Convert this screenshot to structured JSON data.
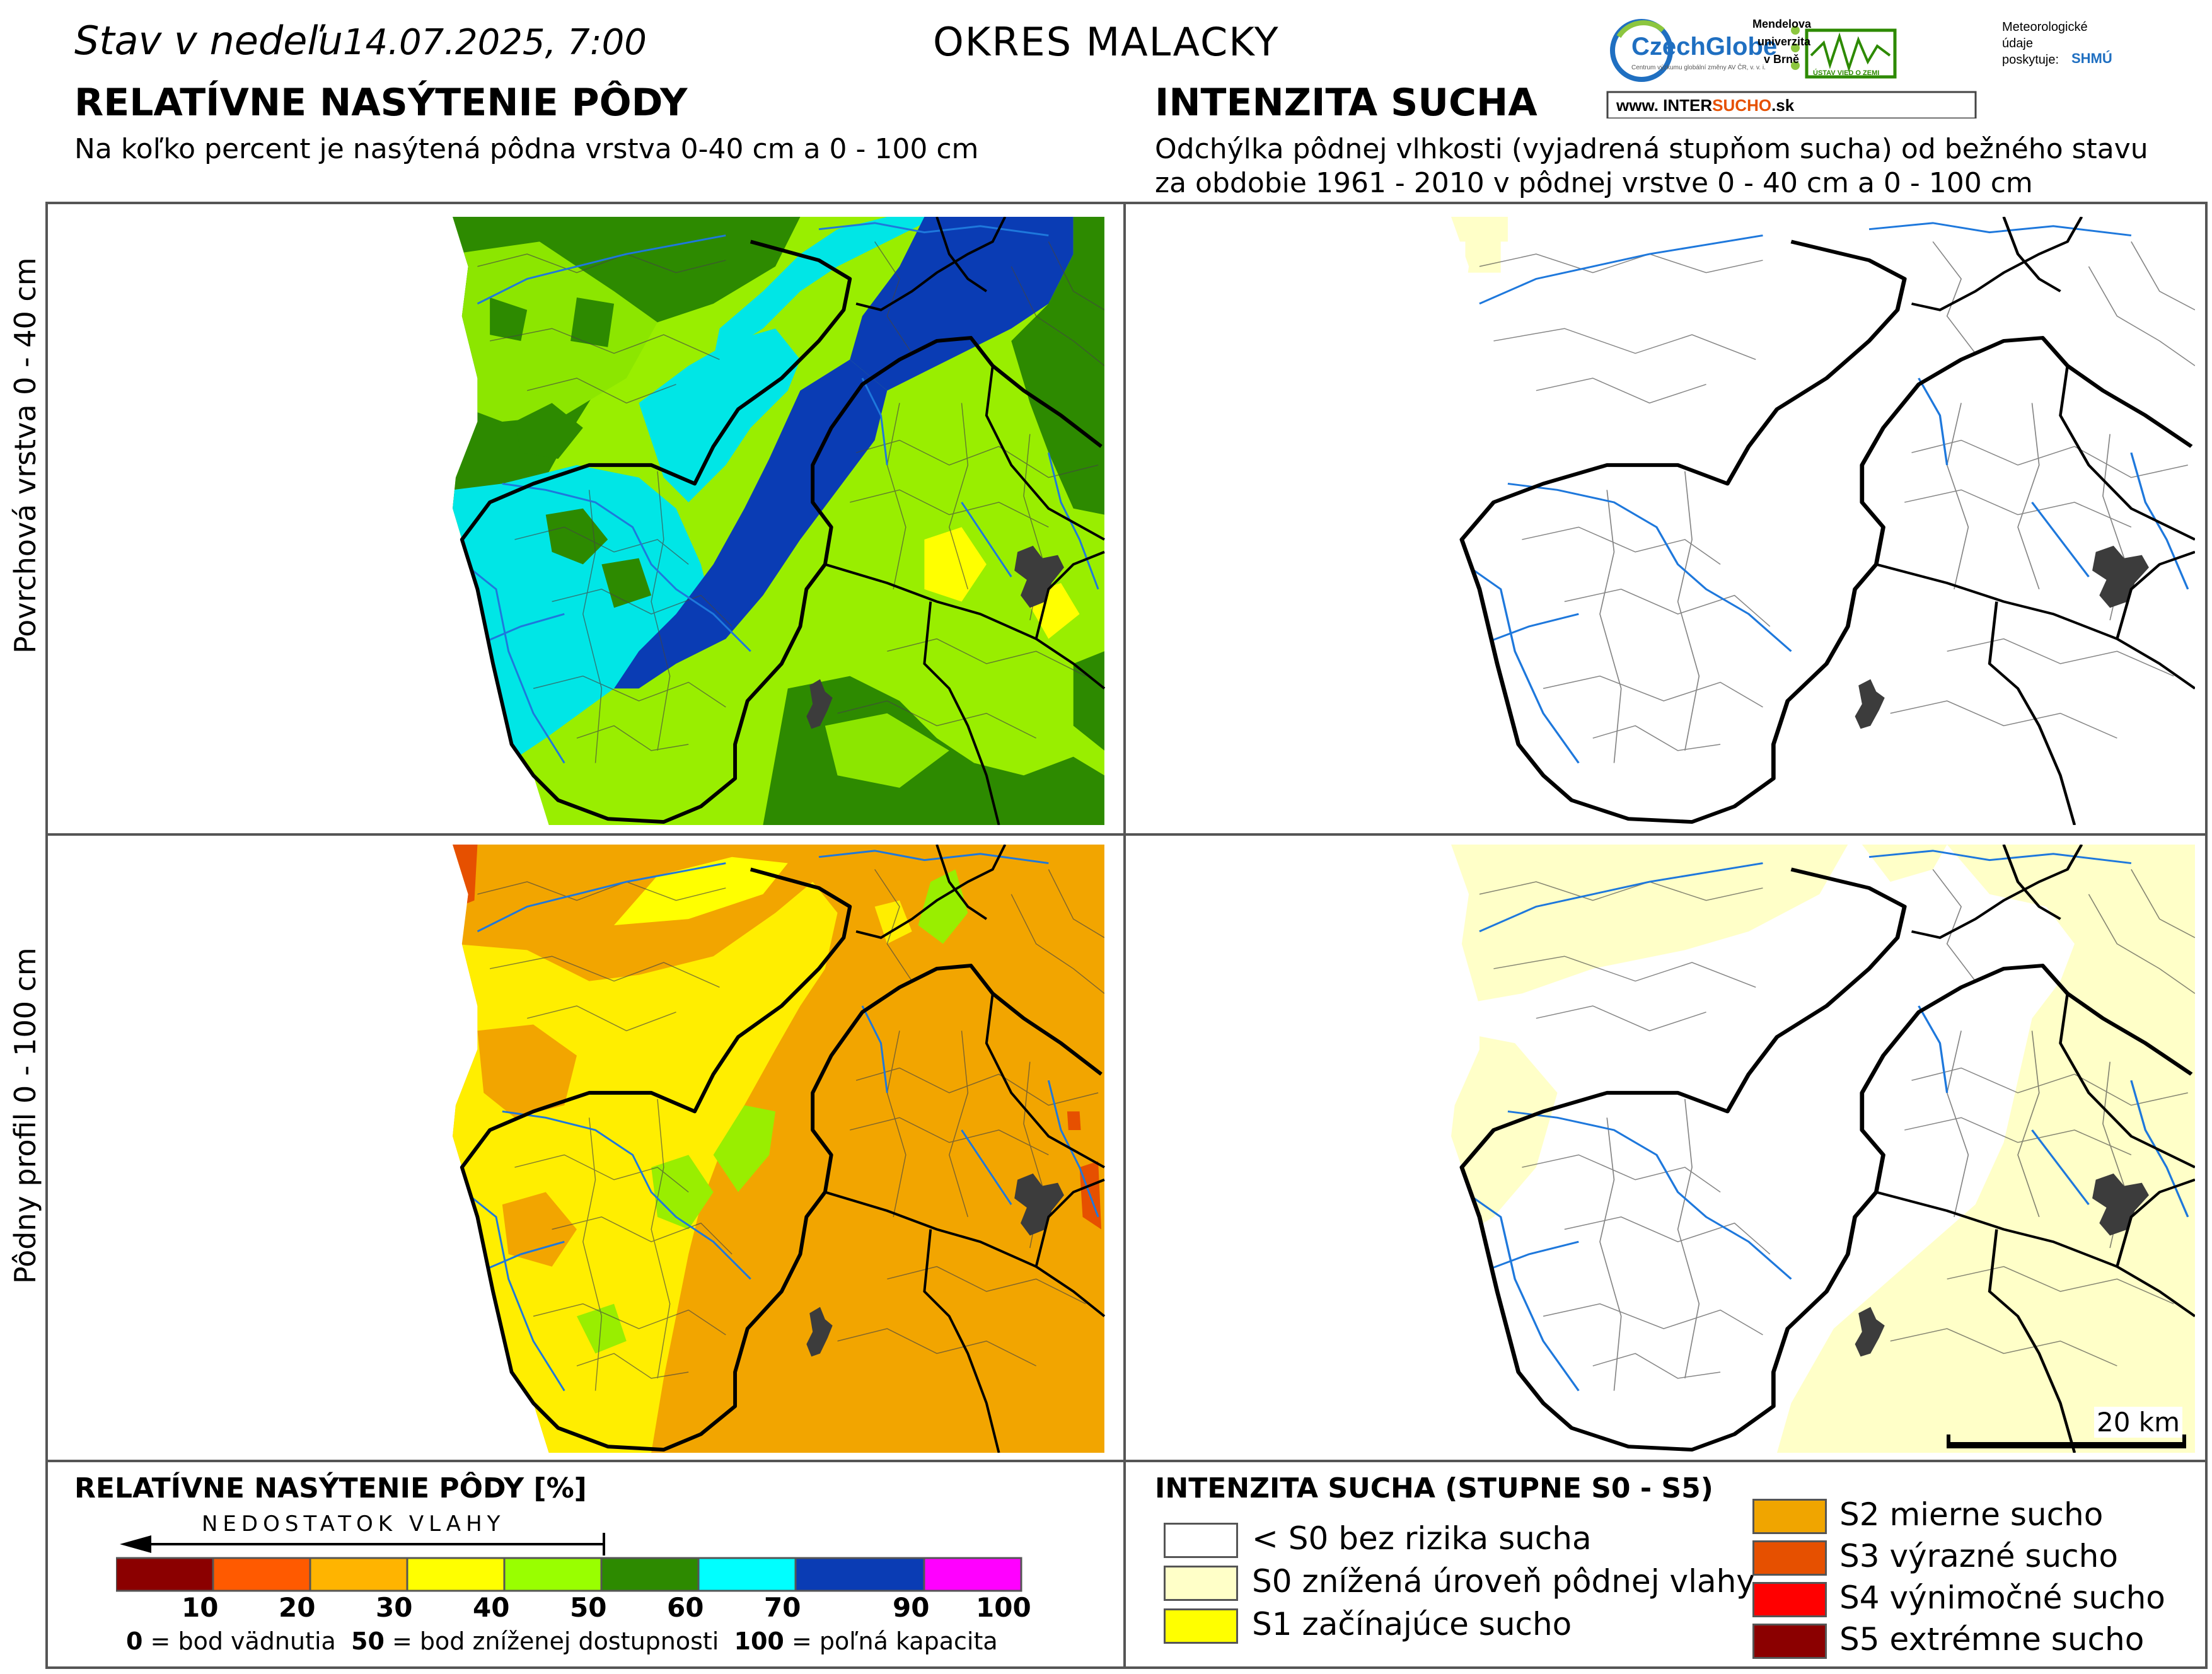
{
  "header": {
    "date_label": "Stav v nedeľu",
    "date_value": "14.07.2025, 7:00",
    "district": "OKRES  MALACKY"
  },
  "left_panel": {
    "title": "RELATÍVNE NASÝTENIE PÔDY",
    "subtitle": "Na koľko percent je nasýtená pôdna vrstva 0-40 cm a 0 - 100 cm"
  },
  "right_panel": {
    "title": "INTENZITA SUCHA",
    "subtitle_line1": "Odchýlka pôdnej vlhkosti (vyjadrená stupňom sucha) od bežného stavu",
    "subtitle_line2": "za obdobie 1961 - 2010 v pôdnej vrstve 0 - 40 cm a 0 - 100 cm"
  },
  "row_labels": {
    "top": "Povrchová vrstva 0 - 40 cm",
    "bottom": "Pôdny profil 0 - 100 cm"
  },
  "logos": {
    "czechglobe": "CzechGlobe",
    "czechglobe_sub": "Centrum výzkumu globální změny AV ČR, v. v. i.",
    "mendel_1": "Mendelova",
    "mendel_2": "univerzita",
    "mendel_3": "v Brně",
    "uvz": "ÚSTAV VIED O ZEMI",
    "meteo_1": "Meteorologické",
    "meteo_2": "údaje",
    "meteo_3": "poskytuje:",
    "shmu": "SHMÚ",
    "web_prefix": "www.",
    "web_inter": "INTER",
    "web_sucho": "SUCHO",
    "web_suffix": ".sk"
  },
  "scale_bar": "20 km",
  "legend_left": {
    "title": "RELATÍVNE NASÝTENIE PÔDY [%]",
    "arrow_label": "NEDOSTATOK VLAHY",
    "colors": [
      "#8b0000",
      "#ff5a00",
      "#ffb400",
      "#ffff00",
      "#99ff00",
      "#2d8a00",
      "#00ffff",
      "#0a3cb4",
      "#ff00ff"
    ],
    "ticks": [
      "10",
      "20",
      "30",
      "40",
      "50",
      "60",
      "70",
      "90",
      "100"
    ],
    "note_0_num": "0",
    "note_0_txt": "= bod vädnutia",
    "note_50_num": "50",
    "note_50_txt": "= bod zníženej dostupnosti",
    "note_100_num": "100",
    "note_100_txt": "= poľná kapacita"
  },
  "legend_right": {
    "title": "INTENZITA SUCHA (STUPNE S0 - S5)",
    "items": [
      {
        "label": "< S0 bez rizika sucha",
        "color": "#ffffff"
      },
      {
        "label": "S0 znížená úroveň pôdnej vlahy",
        "color": "#ffffc8"
      },
      {
        "label": "S1 začínajúce sucho",
        "color": "#ffff00"
      },
      {
        "label": "S2 mierne sucho",
        "color": "#f0a500"
      },
      {
        "label": "S3 výrazné sucho",
        "color": "#e65000"
      },
      {
        "label": "S4 výnimočné sucho",
        "color": "#ff0000"
      },
      {
        "label": "S5 extrémne sucho",
        "color": "#8b0000"
      }
    ]
  },
  "colors": {
    "frame": "#555555",
    "district_border": "#000000",
    "river": "#1e78dc",
    "town": "#3c3c3c"
  }
}
